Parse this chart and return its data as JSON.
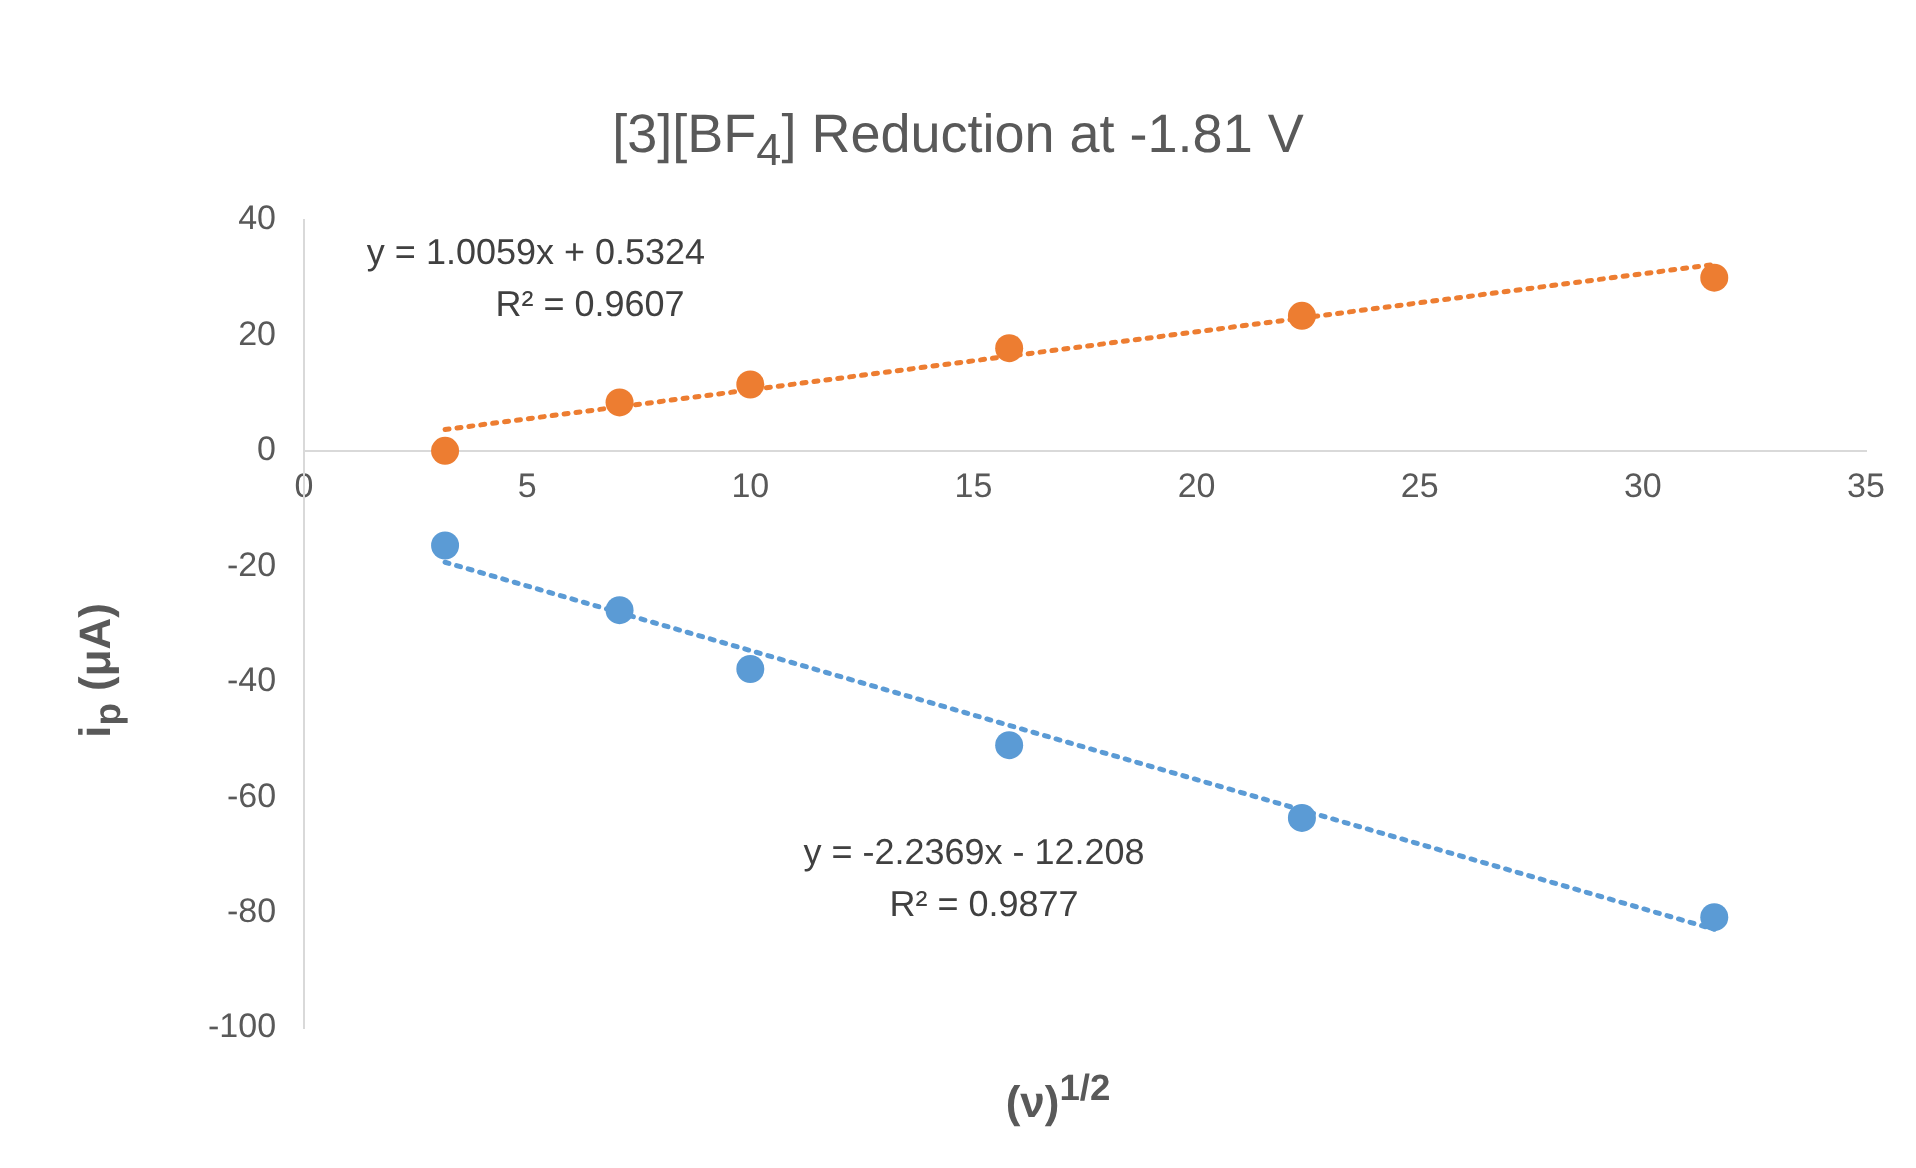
{
  "chart_data": {
    "type": "scatter",
    "title": "[3][BF$_{4}$] Reduction at -1.81 V",
    "xlabel": "(ν)$^{1/2}$",
    "ylabel": "i$_{p}$ (μA)",
    "xlim": [
      0,
      35
    ],
    "xticks": [
      0,
      5,
      10,
      15,
      20,
      25,
      30,
      35
    ],
    "ylim": [
      -100,
      40
    ],
    "yticks": [
      -100,
      -80,
      -60,
      -40,
      -20,
      0,
      20,
      40
    ],
    "grid": false,
    "legend": false,
    "marker": "circle",
    "series": [
      {
        "color": "#ed7d31",
        "x": [
          3.16,
          7.07,
          10,
          15.8,
          22.36,
          31.6
        ],
        "values": [
          0,
          8.4,
          11.5,
          17.8,
          23.4,
          30
        ]
      },
      {
        "color": "#5b9bd5",
        "x": [
          3.16,
          7.07,
          10,
          15.8,
          22.36,
          31.6
        ],
        "values": [
          -16.4,
          -27.6,
          -37.8,
          -51,
          -63.6,
          -80.8
        ]
      },
      {
        "type": "line",
        "color": "#ed7d31",
        "marker": "none",
        "line_style": "dotted",
        "x": [
          3.16,
          31.6
        ],
        "values": [
          3.7,
          32.3
        ]
      },
      {
        "type": "line",
        "color": "#5b9bd5",
        "marker": "none",
        "line_style": "dotted",
        "x": [
          3.16,
          31.6
        ],
        "values": [
          -19.3,
          -82.9
        ]
      }
    ],
    "annotations": [
      "y = 1.0059x + 0.5324",
      "R² = 0.9607",
      "y = -2.2369x - 12.208",
      "R² = 0.9877"
    ]
  }
}
